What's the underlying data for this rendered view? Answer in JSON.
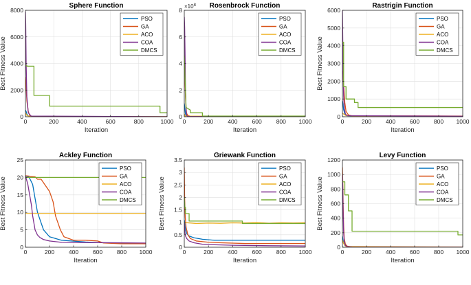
{
  "colors": {
    "PSO": "#0072BD",
    "GA": "#D95319",
    "ACO": "#EDB120",
    "COA": "#7E2F8E",
    "DMCS": "#77AC30"
  },
  "chart_data": [
    {
      "type": "line",
      "title": "Sphere Function",
      "xlabel": "Iteration",
      "ylabel": "Best Fitness Value",
      "xlim": [
        0,
        1000
      ],
      "ylim": [
        0,
        8000
      ],
      "xticks": [
        0,
        200,
        400,
        600,
        800,
        1000
      ],
      "yticks": [
        0,
        2000,
        4000,
        6000,
        8000
      ],
      "ytick_labels": [
        "0",
        "2000",
        "4000",
        "6000",
        "8000"
      ],
      "legend": "top-right",
      "grid": true,
      "series": [
        {
          "name": "PSO",
          "x": [
            0,
            5,
            10,
            20,
            40,
            80,
            1000
          ],
          "y": [
            500,
            400,
            200,
            60,
            20,
            5,
            0
          ]
        },
        {
          "name": "GA",
          "x": [
            0,
            5,
            10,
            20,
            30,
            50,
            1000
          ],
          "y": [
            3000,
            2200,
            1200,
            400,
            100,
            20,
            0
          ]
        },
        {
          "name": "ACO",
          "x": [
            0,
            5,
            10,
            30,
            1000
          ],
          "y": [
            300,
            200,
            100,
            20,
            5
          ]
        },
        {
          "name": "COA",
          "x": [
            0,
            2,
            5,
            10,
            20,
            40,
            1000
          ],
          "y": [
            7900,
            7000,
            4000,
            1500,
            300,
            50,
            0
          ]
        },
        {
          "name": "DMCS",
          "x": [
            0,
            10,
            10,
            60,
            60,
            170,
            170,
            950,
            950,
            1000
          ],
          "y": [
            3850,
            3850,
            3800,
            3800,
            1600,
            1600,
            800,
            800,
            300,
            300
          ]
        }
      ]
    },
    {
      "type": "line",
      "title": "Rosenbrock Function",
      "xlabel": "Iteration",
      "ylabel": "",
      "xlim": [
        0,
        1000
      ],
      "ylim": [
        0,
        8
      ],
      "y_multiplier": "×10",
      "y_exponent": "8",
      "xticks": [
        0,
        200,
        400,
        600,
        800,
        1000
      ],
      "yticks": [
        0,
        2,
        4,
        6,
        8
      ],
      "ytick_labels": [
        "0",
        "2",
        "4",
        "6",
        "8"
      ],
      "legend": "top-right",
      "grid": true,
      "series": [
        {
          "name": "PSO",
          "x": [
            0,
            5,
            10,
            20,
            40,
            1000
          ],
          "y": [
            1.0,
            0.6,
            0.2,
            0.05,
            0.01,
            0
          ]
        },
        {
          "name": "GA",
          "x": [
            0,
            5,
            10,
            15,
            20,
            30,
            50,
            80,
            1000
          ],
          "y": [
            4.0,
            3.0,
            1.5,
            0.6,
            0.25,
            0.1,
            0.04,
            0.01,
            0
          ]
        },
        {
          "name": "ACO",
          "x": [
            0,
            10,
            1000
          ],
          "y": [
            0.2,
            0.05,
            0.02
          ]
        },
        {
          "name": "COA",
          "x": [
            0,
            3,
            6,
            10,
            15,
            20,
            30,
            1000
          ],
          "y": [
            7.5,
            6.8,
            5.0,
            2.0,
            0.5,
            0.1,
            0.02,
            0
          ]
        },
        {
          "name": "DMCS",
          "x": [
            0,
            10,
            15,
            50,
            50,
            150,
            150,
            1000
          ],
          "y": [
            4.6,
            2.0,
            0.7,
            0.5,
            0.3,
            0.3,
            0.05,
            0.05
          ]
        }
      ]
    },
    {
      "type": "line",
      "title": "Rastrigin Function",
      "xlabel": "Iteration",
      "ylabel": "Best Fitness Value",
      "xlim": [
        0,
        1000
      ],
      "ylim": [
        0,
        6000
      ],
      "xticks": [
        0,
        200,
        400,
        600,
        800,
        1000
      ],
      "yticks": [
        0,
        1000,
        2000,
        3000,
        4000,
        5000,
        6000
      ],
      "ytick_labels": [
        "0",
        "1000",
        "2000",
        "3000",
        "4000",
        "5000",
        "6000"
      ],
      "legend": "top-right",
      "grid": true,
      "series": [
        {
          "name": "PSO",
          "x": [
            0,
            5,
            10,
            20,
            40,
            80,
            1000
          ],
          "y": [
            900,
            700,
            400,
            150,
            60,
            40,
            30
          ]
        },
        {
          "name": "GA",
          "x": [
            0,
            5,
            10,
            20,
            30,
            50,
            80,
            1000
          ],
          "y": [
            2600,
            2400,
            1800,
            800,
            300,
            100,
            50,
            40
          ]
        },
        {
          "name": "ACO",
          "x": [
            0,
            10,
            30,
            1000
          ],
          "y": [
            200,
            150,
            60,
            20
          ]
        },
        {
          "name": "COA",
          "x": [
            0,
            2,
            5,
            10,
            15,
            25,
            40,
            1000
          ],
          "y": [
            6000,
            5000,
            3000,
            1200,
            500,
            150,
            60,
            30
          ]
        },
        {
          "name": "DMCS",
          "x": [
            0,
            10,
            10,
            30,
            30,
            100,
            100,
            130,
            130,
            1000
          ],
          "y": [
            4200,
            4200,
            1700,
            1700,
            1000,
            1000,
            800,
            800,
            520,
            520
          ]
        }
      ]
    },
    {
      "type": "line",
      "title": "Ackley Function",
      "xlabel": "Iteration",
      "ylabel": "Best Fitness Value",
      "xlim": [
        0,
        1000
      ],
      "ylim": [
        0,
        25
      ],
      "xticks": [
        0,
        200,
        400,
        600,
        800,
        1000
      ],
      "yticks": [
        0,
        5,
        10,
        15,
        20,
        25
      ],
      "ytick_labels": [
        "0",
        "5",
        "10",
        "15",
        "20",
        "25"
      ],
      "legend": "top-right",
      "grid": true,
      "series": [
        {
          "name": "PSO",
          "x": [
            0,
            10,
            30,
            60,
            100,
            150,
            200,
            300,
            500,
            700,
            1000
          ],
          "y": [
            20.5,
            20.3,
            20.1,
            18,
            10,
            5,
            3,
            2,
            1.5,
            1.2,
            1.0
          ]
        },
        {
          "name": "GA",
          "x": [
            0,
            80,
            100,
            130,
            150,
            180,
            200,
            230,
            250,
            270,
            290,
            320,
            400,
            500,
            600,
            650,
            800,
            1000
          ],
          "y": [
            20.5,
            20.2,
            19.5,
            19.5,
            18.5,
            17,
            16,
            13,
            9,
            7,
            5,
            3,
            2,
            2,
            1.8,
            1.2,
            1.0,
            1.0
          ]
        },
        {
          "name": "ACO",
          "x": [
            0,
            1000
          ],
          "y": [
            9.7,
            9.7
          ]
        },
        {
          "name": "COA",
          "x": [
            0,
            20,
            30,
            40,
            50,
            60,
            70,
            80,
            100,
            120,
            150,
            200,
            300,
            1000
          ],
          "y": [
            20.5,
            18,
            16,
            14,
            12,
            9,
            7,
            5,
            3.5,
            2.8,
            2.2,
            1.8,
            1.4,
            1.2
          ]
        },
        {
          "name": "DMCS",
          "x": [
            0,
            1000
          ],
          "y": [
            20.0,
            20.0
          ]
        }
      ]
    },
    {
      "type": "line",
      "title": "Griewank Function",
      "xlabel": "Iteration",
      "ylabel": "Best Fitness Value",
      "xlim": [
        0,
        1000
      ],
      "ylim": [
        0,
        3.5
      ],
      "xticks": [
        0,
        200,
        400,
        600,
        800,
        1000
      ],
      "yticks": [
        0,
        0.5,
        1,
        1.5,
        2,
        2.5,
        3,
        3.5
      ],
      "ytick_labels": [
        "0",
        "0.5",
        "1",
        "1.5",
        "2",
        "2.5",
        "3",
        "3.5"
      ],
      "legend": "top-right",
      "grid": true,
      "series": [
        {
          "name": "PSO",
          "x": [
            0,
            5,
            10,
            20,
            40,
            80,
            150,
            250,
            1000
          ],
          "y": [
            1.1,
            0.9,
            0.7,
            0.55,
            0.45,
            0.38,
            0.32,
            0.28,
            0.28
          ]
        },
        {
          "name": "GA",
          "x": [
            0,
            3,
            8,
            15,
            30,
            50,
            100,
            200,
            300,
            500,
            1000
          ],
          "y": [
            3.2,
            2.0,
            1.2,
            0.8,
            0.5,
            0.35,
            0.25,
            0.2,
            0.18,
            0.15,
            0.15
          ]
        },
        {
          "name": "ACO",
          "x": [
            0,
            30,
            100,
            200,
            300,
            400,
            500,
            600,
            700,
            800,
            900,
            1000
          ],
          "y": [
            1.0,
            0.98,
            0.95,
            0.97,
            0.96,
            0.98,
            0.97,
            0.99,
            0.96,
            0.98,
            0.97,
            0.98
          ]
        },
        {
          "name": "COA",
          "x": [
            0,
            5,
            10,
            20,
            40,
            80,
            150,
            250,
            400,
            700,
            1000
          ],
          "y": [
            1.0,
            0.6,
            0.45,
            0.35,
            0.25,
            0.18,
            0.12,
            0.1,
            0.08,
            0.06,
            0.05
          ]
        },
        {
          "name": "DMCS",
          "x": [
            0,
            5,
            10,
            10,
            40,
            40,
            480,
            480,
            1000
          ],
          "y": [
            2.0,
            1.6,
            1.6,
            1.35,
            1.35,
            1.05,
            1.05,
            0.95,
            0.95
          ]
        }
      ]
    },
    {
      "type": "line",
      "title": "Levy Function",
      "xlabel": "Iteration",
      "ylabel": "Best Fitness Value",
      "xlim": [
        0,
        1000
      ],
      "ylim": [
        0,
        1200
      ],
      "xticks": [
        0,
        200,
        400,
        600,
        800,
        1000
      ],
      "yticks": [
        0,
        200,
        400,
        600,
        800,
        1000,
        1200
      ],
      "ytick_labels": [
        "0",
        "200",
        "400",
        "600",
        "800",
        "1000",
        "1200"
      ],
      "legend": "top-right",
      "grid": true,
      "series": [
        {
          "name": "PSO",
          "x": [
            0,
            5,
            10,
            20,
            40,
            80,
            1000
          ],
          "y": [
            150,
            100,
            60,
            25,
            10,
            5,
            3
          ]
        },
        {
          "name": "GA",
          "x": [
            0,
            3,
            6,
            10,
            15,
            25,
            40,
            80,
            1000
          ],
          "y": [
            1100,
            900,
            600,
            300,
            120,
            40,
            15,
            5,
            3
          ]
        },
        {
          "name": "ACO",
          "x": [
            0,
            10,
            30,
            1000
          ],
          "y": [
            100,
            50,
            10,
            3
          ]
        },
        {
          "name": "COA",
          "x": [
            0,
            3,
            6,
            10,
            15,
            25,
            40,
            80,
            1000
          ],
          "y": [
            1000,
            800,
            500,
            200,
            80,
            25,
            8,
            3,
            1
          ]
        },
        {
          "name": "DMCS",
          "x": [
            0,
            20,
            20,
            50,
            50,
            80,
            80,
            960,
            960,
            1000
          ],
          "y": [
            900,
            900,
            720,
            720,
            500,
            500,
            220,
            220,
            170,
            170
          ]
        }
      ]
    }
  ]
}
